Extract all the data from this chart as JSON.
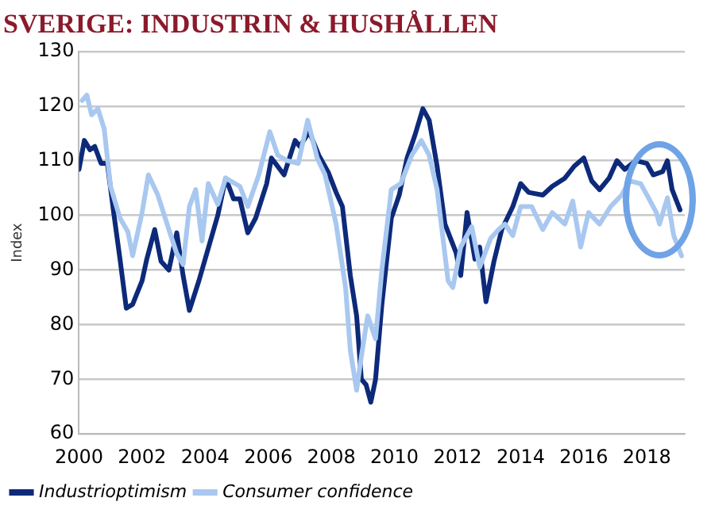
{
  "chart_data": {
    "type": "line",
    "title": "SVERIGE: INDUSTRIN & HUSHÅLLEN",
    "ylabel": "Index",
    "xlim": [
      2000,
      2019.2
    ],
    "xticks": [
      2000,
      2002,
      2004,
      2006,
      2008,
      2010,
      2012,
      2014,
      2016,
      2018
    ],
    "ylim": [
      60,
      130
    ],
    "yticks": [
      60,
      70,
      80,
      90,
      100,
      110,
      120,
      130
    ],
    "grid": "y",
    "legend": "bottom left",
    "series": [
      {
        "name": "Industrioptimism",
        "color": "#0d2a7a",
        "x": [
          2000.0,
          2000.17,
          2000.35,
          2000.5,
          2000.7,
          2000.9,
          2001.1,
          2001.3,
          2001.5,
          2001.7,
          2002.0,
          2002.15,
          2002.4,
          2002.6,
          2002.85,
          2003.1,
          2003.3,
          2003.5,
          2003.8,
          2004.0,
          2004.4,
          2004.65,
          2004.9,
          2005.1,
          2005.35,
          2005.6,
          2005.95,
          2006.1,
          2006.5,
          2006.85,
          2007.0,
          2007.3,
          2007.6,
          2007.9,
          2008.15,
          2008.35,
          2008.6,
          2008.8,
          2008.95,
          2009.1,
          2009.25,
          2009.4,
          2009.6,
          2009.9,
          2010.15,
          2010.4,
          2010.65,
          2010.9,
          2011.1,
          2011.35,
          2011.6,
          2011.95,
          2012.1,
          2012.3,
          2012.55,
          2012.7,
          2012.9,
          2013.15,
          2013.4,
          2013.75,
          2014.0,
          2014.25,
          2014.7,
          2015.0,
          2015.4,
          2015.7,
          2016.0,
          2016.25,
          2016.5,
          2016.8,
          2017.05,
          2017.3,
          2017.65,
          2018.0,
          2018.2,
          2018.5,
          2018.65,
          2018.8,
          2019.05
        ],
        "values": [
          108.4,
          113.7,
          112,
          112.6,
          109.5,
          109.5,
          100.5,
          92,
          83,
          83.7,
          88,
          92,
          97.4,
          91.6,
          90,
          96.8,
          89,
          82.6,
          88,
          92,
          100,
          106.8,
          103,
          103,
          96.8,
          99.5,
          105.8,
          110.5,
          107.4,
          113.7,
          112.6,
          115.3,
          111,
          107.9,
          104.2,
          101.6,
          89,
          81.6,
          70,
          69,
          65.8,
          70,
          83.7,
          99.5,
          103.7,
          110.5,
          114.7,
          119.5,
          117.4,
          109,
          98.4,
          93.2,
          89,
          100.5,
          92,
          94.2,
          84.2,
          91.5,
          97.4,
          101.6,
          105.8,
          104.2,
          103.7,
          105.3,
          106.8,
          109,
          110.5,
          106.3,
          104.7,
          106.8,
          110,
          108.4,
          110,
          109.5,
          107.4,
          108,
          110,
          104.7,
          101
        ]
      },
      {
        "name": "Consumer confidence",
        "color": "#a9c8f0",
        "x": [
          2000.1,
          2000.25,
          2000.4,
          2000.6,
          2000.8,
          2001.0,
          2001.3,
          2001.55,
          2001.7,
          2002.0,
          2002.2,
          2002.5,
          2002.85,
          2003.1,
          2003.3,
          2003.5,
          2003.7,
          2003.9,
          2004.1,
          2004.4,
          2004.65,
          2005.1,
          2005.35,
          2005.7,
          2006.05,
          2006.3,
          2006.6,
          2006.95,
          2007.25,
          2007.55,
          2007.8,
          2008.15,
          2008.45,
          2008.6,
          2008.8,
          2008.95,
          2009.15,
          2009.4,
          2009.6,
          2009.9,
          2010.2,
          2010.55,
          2010.85,
          2011.1,
          2011.35,
          2011.7,
          2011.85,
          2012.1,
          2012.45,
          2012.7,
          2013.05,
          2013.3,
          2013.5,
          2013.75,
          2014.0,
          2014.35,
          2014.7,
          2015.0,
          2015.4,
          2015.65,
          2015.9,
          2016.15,
          2016.5,
          2016.85,
          2017.2,
          2017.45,
          2017.8,
          2018.05,
          2018.3,
          2018.4,
          2018.65,
          2018.85,
          2019.1
        ],
        "values": [
          121,
          122,
          118.4,
          119.5,
          115.8,
          105.3,
          99.5,
          97,
          92.6,
          100.5,
          107.4,
          103.7,
          97.4,
          93,
          91,
          101.6,
          104.7,
          95.3,
          105.8,
          102,
          106.8,
          105.3,
          101.6,
          107.4,
          115.3,
          111,
          110,
          109.5,
          117.4,
          110.5,
          107.4,
          98.4,
          86.8,
          75.3,
          68,
          74.2,
          81.6,
          77.4,
          90,
          104.7,
          105.8,
          111,
          113.7,
          111,
          104.7,
          88,
          86.8,
          94.2,
          97.9,
          90.5,
          95.8,
          97.4,
          98.4,
          96.3,
          101.6,
          101.6,
          97.4,
          100.5,
          98.4,
          102.6,
          94.2,
          100.5,
          98.4,
          101.6,
          103.7,
          106.3,
          105.8,
          103.2,
          100.5,
          98.4,
          103.2,
          96.3,
          92.6
        ]
      }
    ]
  }
}
